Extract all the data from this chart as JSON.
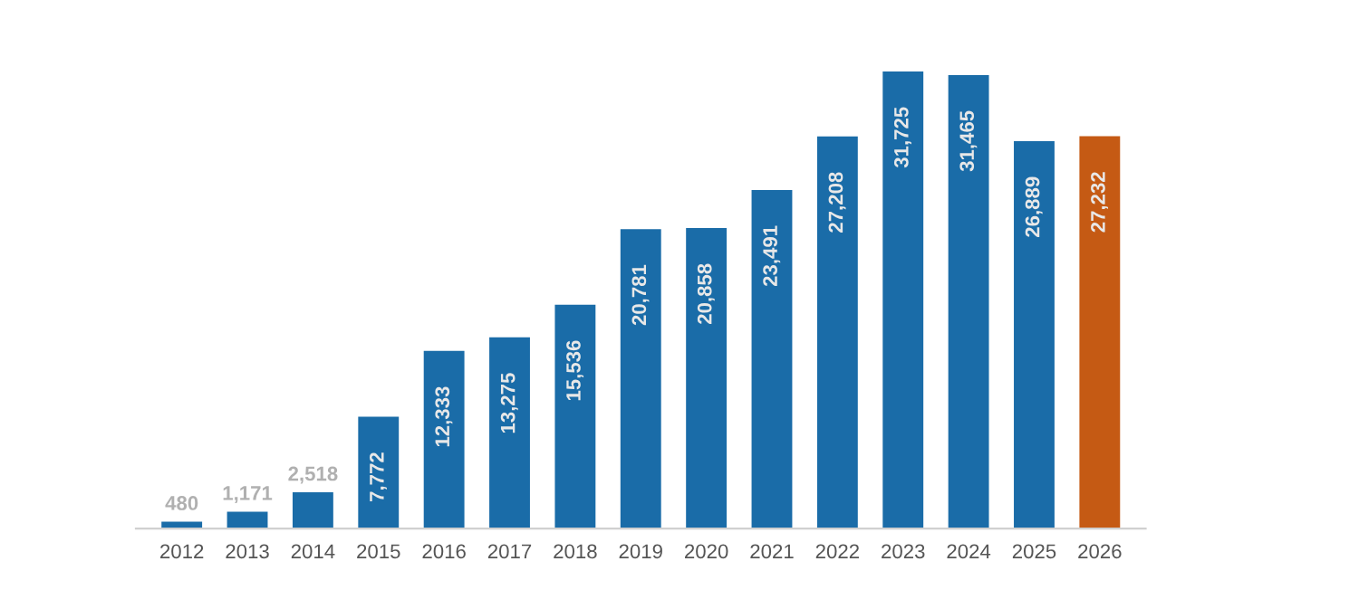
{
  "chart_data": {
    "type": "bar",
    "categories": [
      "2012",
      "2013",
      "2014",
      "2015",
      "2016",
      "2017",
      "2018",
      "2019",
      "2020",
      "2021",
      "2022",
      "2023",
      "2024",
      "2025",
      "2026"
    ],
    "values": [
      480,
      1171,
      2518,
      7772,
      12333,
      13275,
      15536,
      20781,
      20858,
      23491,
      27208,
      31725,
      31465,
      26889,
      27232
    ],
    "colors": [
      "#1a6ca8",
      "#1a6ca8",
      "#1a6ca8",
      "#1a6ca8",
      "#1a6ca8",
      "#1a6ca8",
      "#1a6ca8",
      "#1a6ca8",
      "#1a6ca8",
      "#1a6ca8",
      "#1a6ca8",
      "#1a6ca8",
      "#1a6ca8",
      "#1a6ca8",
      "#c55a14"
    ],
    "value_labels": [
      "480",
      "1,171",
      "2,518",
      "7,772",
      "12,333",
      "13,275",
      "15,536",
      "20,781",
      "20,858",
      "23,491",
      "27,208",
      "31,725",
      "31,465",
      "26,889",
      "27,232"
    ],
    "grid": false,
    "legend": false
  }
}
